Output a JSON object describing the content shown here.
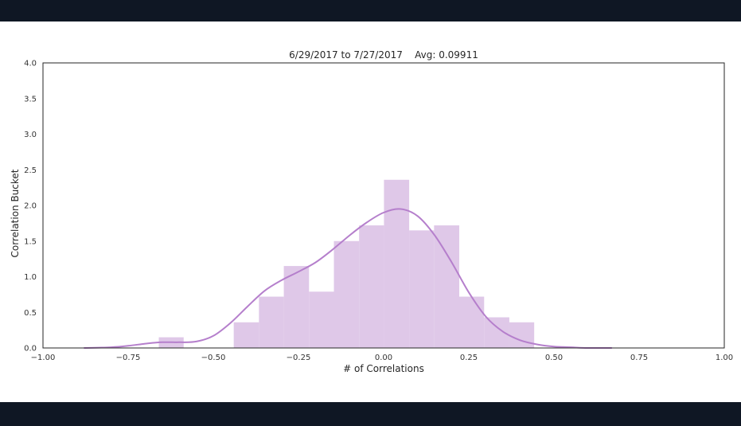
{
  "colors": {
    "frame": "#0f1724",
    "bar_fill": "#dfc8e8",
    "kde_line": "#b57fcc"
  },
  "chart_data": {
    "type": "bar",
    "title": "6/29/2017 to 7/27/2017    Avg: 0.09911",
    "xlabel": "# of Correlations",
    "ylabel": "Correlation Bucket",
    "xlim": [
      -1.0,
      1.0
    ],
    "ylim": [
      0.0,
      4.0
    ],
    "xticks": [
      -1.0,
      -0.75,
      -0.5,
      -0.25,
      0.0,
      0.25,
      0.5,
      0.75,
      1.0
    ],
    "xtick_labels": [
      "−1.00",
      "−0.75",
      "−0.50",
      "−0.25",
      "0.00",
      "0.25",
      "0.50",
      "0.75",
      "1.00"
    ],
    "yticks": [
      0.0,
      0.5,
      1.0,
      1.5,
      2.0,
      2.5,
      3.0,
      3.5,
      4.0
    ],
    "ytick_labels": [
      "0.0",
      "0.5",
      "1.0",
      "1.5",
      "2.0",
      "2.5",
      "3.0",
      "3.5",
      "4.0"
    ],
    "bins": [
      {
        "x0": -0.66,
        "x1": -0.587,
        "value": 0.15
      },
      {
        "x0": -0.587,
        "x1": -0.513,
        "value": 0.0
      },
      {
        "x0": -0.513,
        "x1": -0.44,
        "value": 0.0
      },
      {
        "x0": -0.44,
        "x1": -0.366,
        "value": 0.36
      },
      {
        "x0": -0.366,
        "x1": -0.293,
        "value": 0.72
      },
      {
        "x0": -0.293,
        "x1": -0.219,
        "value": 1.15
      },
      {
        "x0": -0.219,
        "x1": -0.146,
        "value": 0.79
      },
      {
        "x0": -0.146,
        "x1": -0.072,
        "value": 1.5
      },
      {
        "x0": -0.072,
        "x1": 0.001,
        "value": 1.72
      },
      {
        "x0": 0.001,
        "x1": 0.075,
        "value": 2.36
      },
      {
        "x0": 0.075,
        "x1": 0.148,
        "value": 1.65
      },
      {
        "x0": 0.148,
        "x1": 0.222,
        "value": 1.72
      },
      {
        "x0": 0.222,
        "x1": 0.295,
        "value": 0.72
      },
      {
        "x0": 0.295,
        "x1": 0.369,
        "value": 0.43
      },
      {
        "x0": 0.369,
        "x1": 0.442,
        "value": 0.36
      }
    ],
    "kde": {
      "x": [
        -0.88,
        -0.8,
        -0.75,
        -0.7,
        -0.65,
        -0.6,
        -0.55,
        -0.5,
        -0.45,
        -0.4,
        -0.35,
        -0.3,
        -0.25,
        -0.2,
        -0.15,
        -0.1,
        -0.05,
        0.0,
        0.05,
        0.1,
        0.15,
        0.2,
        0.25,
        0.3,
        0.35,
        0.4,
        0.45,
        0.5,
        0.55,
        0.6,
        0.67
      ],
      "y": [
        0.0,
        0.01,
        0.03,
        0.06,
        0.08,
        0.08,
        0.09,
        0.17,
        0.35,
        0.58,
        0.8,
        0.95,
        1.07,
        1.2,
        1.38,
        1.58,
        1.76,
        1.9,
        1.95,
        1.85,
        1.58,
        1.2,
        0.78,
        0.44,
        0.23,
        0.11,
        0.05,
        0.02,
        0.01,
        0.0,
        0.0
      ]
    },
    "grid": false
  }
}
